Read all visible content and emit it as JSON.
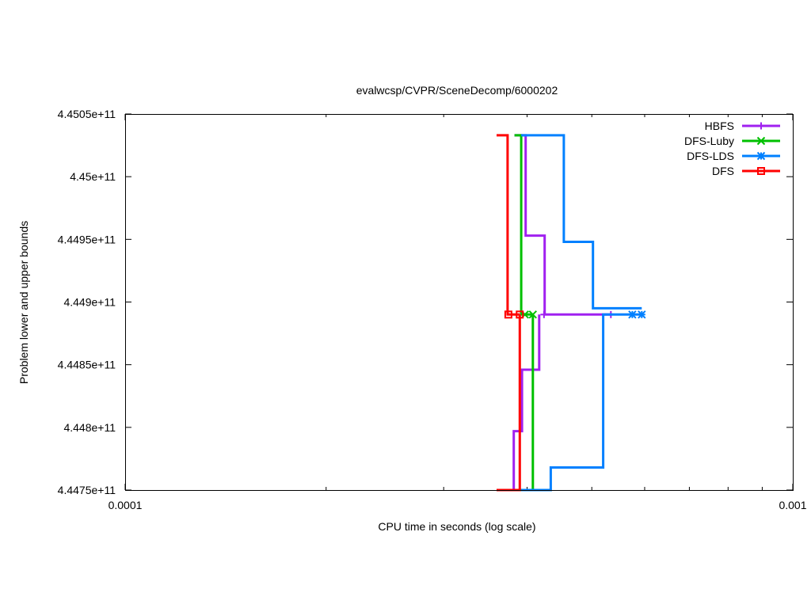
{
  "chart_data": {
    "type": "line",
    "title": "evalwcsp/CVPR/SceneDecomp/6000202",
    "xlabel": "CPU time in seconds (log scale)",
    "ylabel": "Problem lower and upper bounds",
    "xscale": "log",
    "xlim": [
      0.0001,
      0.001
    ],
    "ylim": [
      444750000000,
      445050000000
    ],
    "xticks": [
      {
        "value": 0.0001,
        "label": "0.0001"
      },
      {
        "value": 0.001,
        "label": "0.001"
      }
    ],
    "yticks": [
      {
        "value": 444750000000,
        "label": "4.4475e+11"
      },
      {
        "value": 444800000000,
        "label": "4.448e+11"
      },
      {
        "value": 444850000000,
        "label": "4.4485e+11"
      },
      {
        "value": 444900000000,
        "label": "4.449e+11"
      },
      {
        "value": 444950000000,
        "label": "4.4495e+11"
      },
      {
        "value": 445000000000,
        "label": "4.45e+11"
      },
      {
        "value": 445050000000,
        "label": "4.4505e+11"
      }
    ],
    "grid": false,
    "legend_position": "top-right",
    "series": [
      {
        "name": "HBFS",
        "color": "#a020f0",
        "marker": "plus",
        "upper": [
          [
            0.000383,
            445033000000
          ],
          [
            0.000398,
            445033000000
          ],
          [
            0.000398,
            444953000000
          ],
          [
            0.000425,
            444953000000
          ],
          [
            0.000425,
            444890000000
          ],
          [
            0.000534,
            444890000000
          ]
        ],
        "lower": [
          [
            0.000382,
            444750000000
          ],
          [
            0.000382,
            444797000000
          ],
          [
            0.000393,
            444797000000
          ],
          [
            0.000393,
            444846000000
          ],
          [
            0.000417,
            444846000000
          ],
          [
            0.000417,
            444890000000
          ]
        ],
        "markers": [
          [
            0.000424,
            444890000000
          ],
          [
            0.000534,
            444890000000
          ]
        ]
      },
      {
        "name": "DFS-Luby",
        "color": "#00c000",
        "marker": "x",
        "upper": [
          [
            0.000383,
            445033000000
          ],
          [
            0.000392,
            445033000000
          ],
          [
            0.000392,
            444890000000
          ],
          [
            0.000408,
            444890000000
          ]
        ],
        "lower": [
          [
            0.000383,
            444750000000
          ],
          [
            0.000408,
            444750000000
          ],
          [
            0.000408,
            444890000000
          ]
        ],
        "markers": [
          [
            0.000397,
            444890000000
          ],
          [
            0.000408,
            444890000000
          ]
        ]
      },
      {
        "name": "DFS-LDS",
        "color": "#0080ff",
        "marker": "star",
        "upper": [
          [
            0.000392,
            445033000000
          ],
          [
            0.000454,
            445033000000
          ],
          [
            0.000454,
            444948000000
          ],
          [
            0.000502,
            444948000000
          ],
          [
            0.000502,
            444895000000
          ],
          [
            0.000594,
            444895000000
          ]
        ],
        "lower": [
          [
            0.000392,
            444750000000
          ],
          [
            0.000434,
            444750000000
          ],
          [
            0.000434,
            444768000000
          ],
          [
            0.00052,
            444768000000
          ],
          [
            0.00052,
            444890000000
          ],
          [
            0.000594,
            444890000000
          ]
        ],
        "markers": [
          [
            0.000575,
            444890000000
          ],
          [
            0.000594,
            444890000000
          ]
        ]
      },
      {
        "name": "DFS",
        "color": "#ff0000",
        "marker": "square",
        "upper": [
          [
            0.00036,
            445033000000
          ],
          [
            0.000374,
            445033000000
          ],
          [
            0.000374,
            444890000000
          ],
          [
            0.00039,
            444890000000
          ]
        ],
        "lower": [
          [
            0.00036,
            444750000000
          ],
          [
            0.00039,
            444750000000
          ],
          [
            0.00039,
            444890000000
          ]
        ],
        "markers": [
          [
            0.000375,
            444890000000
          ],
          [
            0.00039,
            444890000000
          ]
        ]
      }
    ]
  }
}
